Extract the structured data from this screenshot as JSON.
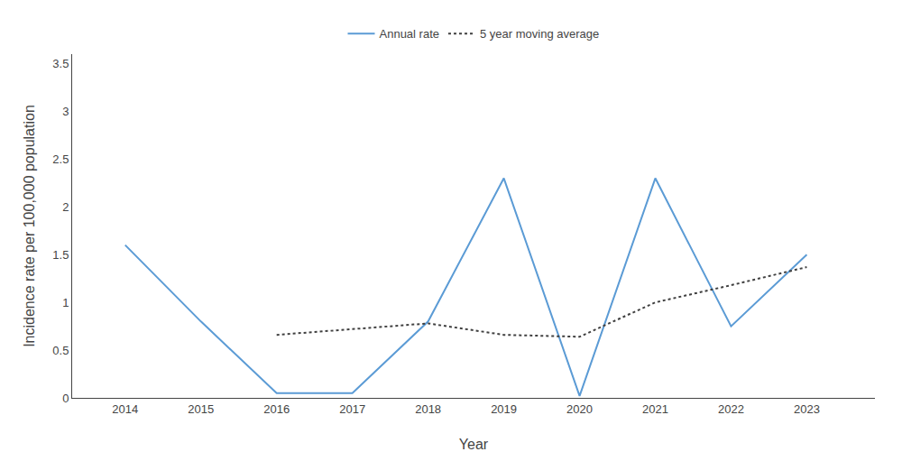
{
  "chart_data": {
    "type": "line",
    "xlabel": "Year",
    "ylabel": "Incidence rate per 100,000 population",
    "series": [
      {
        "name": "Annual rate",
        "color": "#5B9BD5",
        "line_style": "solid",
        "x": [
          2014,
          2015,
          2016,
          2017,
          2018,
          2019,
          2020,
          2021,
          2022,
          2023
        ],
        "values": [
          1.6,
          0.8,
          0.05,
          0.05,
          0.8,
          2.3,
          0.02,
          2.3,
          0.75,
          1.5
        ]
      },
      {
        "name": "5 year moving average",
        "color": "#404040",
        "line_style": "dotted",
        "x": [
          2016,
          2017,
          2018,
          2019,
          2020,
          2021,
          2022,
          2023
        ],
        "values": [
          0.66,
          0.72,
          0.78,
          0.66,
          0.64,
          1.0,
          1.18,
          1.37
        ]
      }
    ],
    "xlim": [
      2013.3,
      2023.9
    ],
    "xticks": [
      2014,
      2015,
      2016,
      2017,
      2018,
      2019,
      2020,
      2021,
      2022,
      2023
    ],
    "ylim": [
      0,
      3.6
    ],
    "yticks": [
      0,
      0.5,
      1,
      1.5,
      2,
      2.5,
      3,
      3.5
    ],
    "grid": false,
    "legend": "top"
  }
}
